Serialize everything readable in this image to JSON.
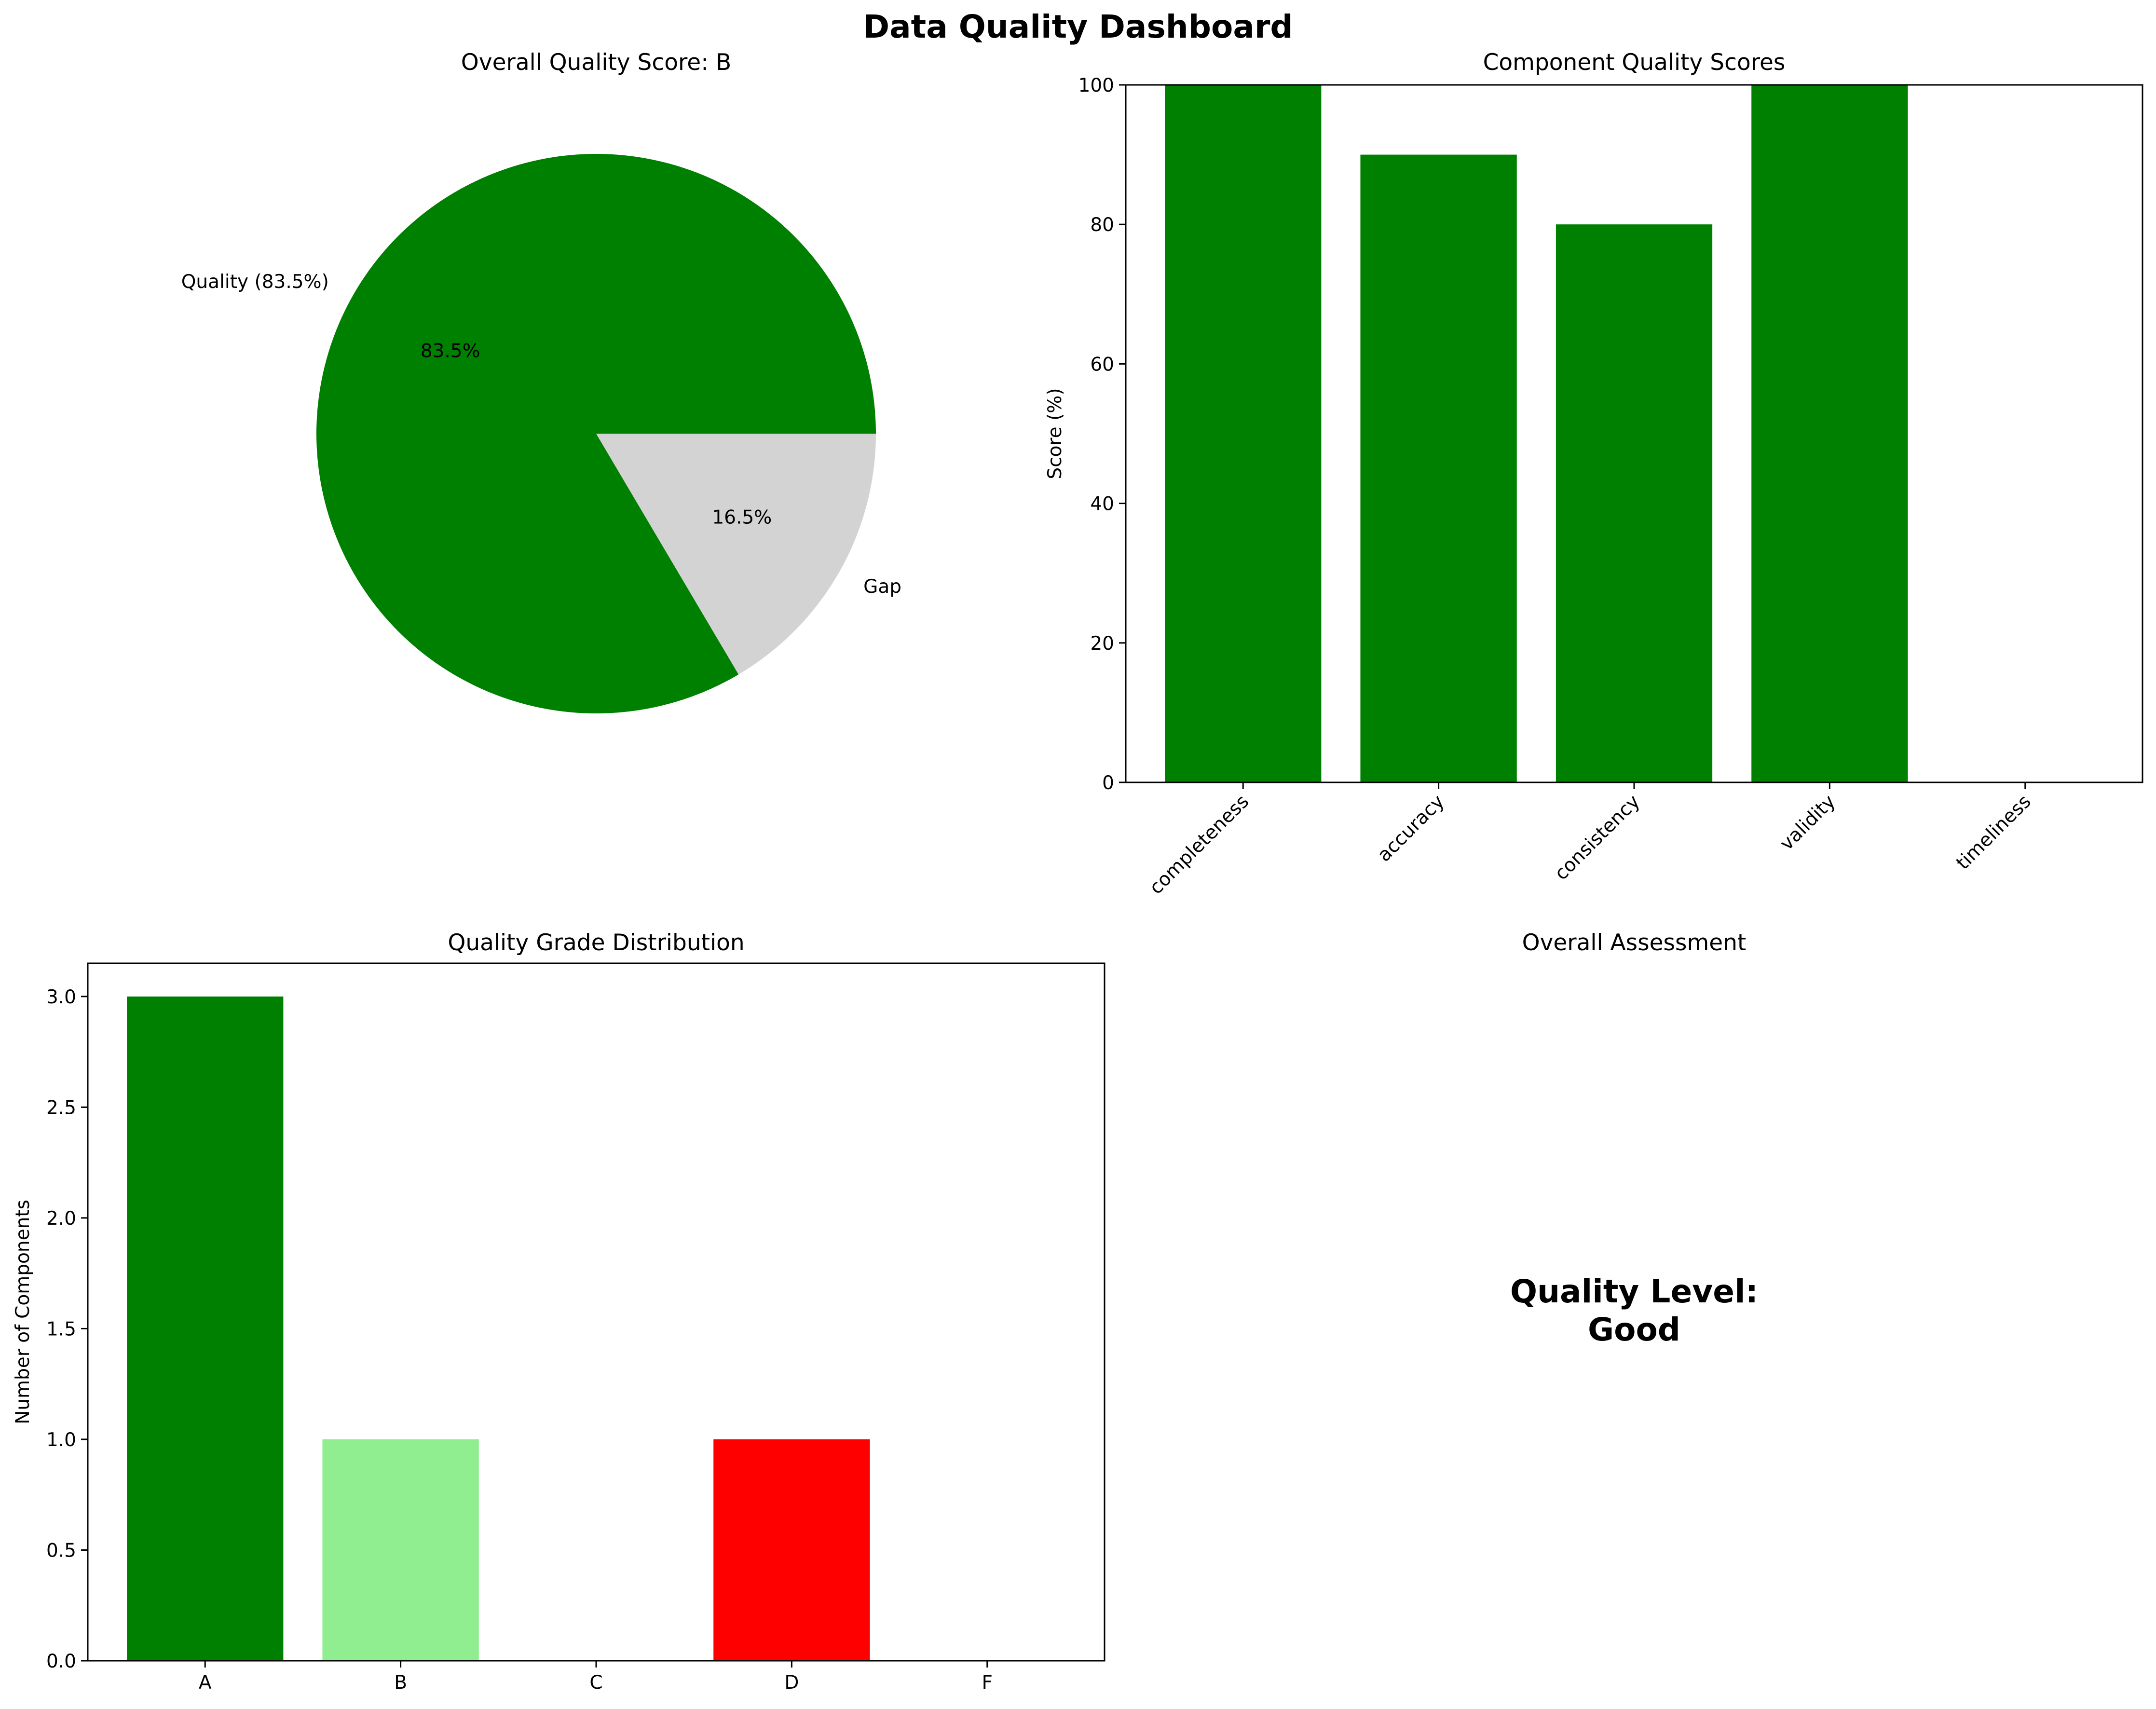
{
  "figure": {
    "title": "Data Quality Dashboard"
  },
  "chart_data": [
    {
      "type": "pie",
      "title": "Overall Quality Score: B",
      "labels": [
        "Quality (83.5%)",
        "Gap"
      ],
      "values": [
        83.5,
        16.5
      ],
      "pct_labels": [
        "83.5%",
        "16.5%"
      ],
      "colors": [
        "#008000",
        "#d3d3d3"
      ]
    },
    {
      "type": "bar",
      "title": "Component Quality Scores",
      "xlabel": "",
      "ylabel": "Score (%)",
      "categories": [
        "completeness",
        "accuracy",
        "consistency",
        "validity",
        "timeliness"
      ],
      "values": [
        100,
        90,
        80,
        100,
        0
      ],
      "colors": [
        "#008000",
        "#008000",
        "#008000",
        "#008000",
        "#008000"
      ],
      "ylim": [
        0,
        100
      ],
      "yticks": [
        0,
        20,
        40,
        60,
        80,
        100
      ],
      "ytick_labels": [
        "0",
        "20",
        "40",
        "60",
        "80",
        "100"
      ],
      "x_tick_rotation": 45
    },
    {
      "type": "bar",
      "title": "Quality Grade Distribution",
      "xlabel": "",
      "ylabel": "Number of Components",
      "categories": [
        "A",
        "B",
        "C",
        "D",
        "F"
      ],
      "values": [
        3,
        1,
        0,
        1,
        0
      ],
      "colors": [
        "#008000",
        "#90ee90",
        "#ffa500",
        "#ff0000",
        "#8b0000"
      ],
      "ylim": [
        0,
        3.15
      ],
      "yticks": [
        0,
        0.5,
        1,
        1.5,
        2,
        2.5,
        3
      ],
      "ytick_labels": [
        "0.0",
        "0.5",
        "1.0",
        "1.5",
        "2.0",
        "2.5",
        "3.0"
      ]
    },
    {
      "type": "text",
      "title": "Overall Assessment",
      "lines": [
        "Quality Level:",
        "Good"
      ]
    }
  ]
}
